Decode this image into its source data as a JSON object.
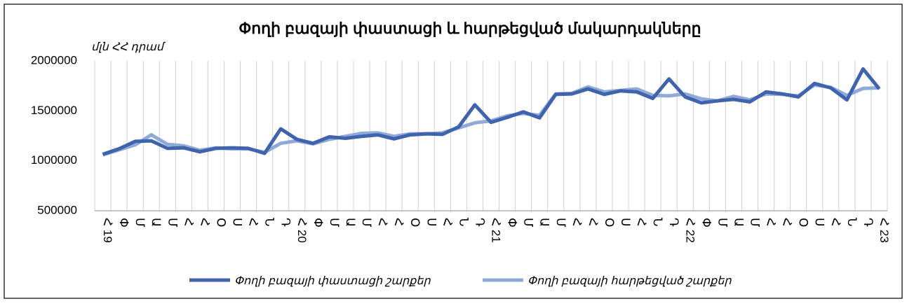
{
  "chart_data": {
    "type": "line",
    "title": "Փողի բազայի փաստացի և հարթեցված մակարդակները",
    "y_label": "մլն ՀՀ դրամ",
    "categories": [
      "Հ 19",
      "Փ",
      "Մ",
      "Ա",
      "Մ",
      "Հ",
      "Հ",
      "Օ",
      "Ս",
      "Հ",
      "Ն",
      "Դ",
      "Հ 20",
      "Փ",
      "Մ",
      "Ա",
      "Մ",
      "Հ",
      "Հ",
      "Օ",
      "Ս",
      "Հ",
      "Ն",
      "Դ",
      "Հ 21",
      "Փ",
      "Մ",
      "Ա",
      "Մ",
      "Հ",
      "Հ",
      "Օ",
      "Ս",
      "Հ",
      "Ն",
      "Դ",
      "Հ 22",
      "Փ",
      "Մ",
      "Ա",
      "Մ",
      "Հ",
      "Հ",
      "Օ",
      "Ս",
      "Հ",
      "Ն",
      "Դ",
      "Հ 23"
    ],
    "series": [
      {
        "name": "Փողի բազայի փաստացի շարքեր",
        "color": "#3f64ad",
        "values": [
          1065000,
          1120000,
          1195000,
          1200000,
          1125000,
          1130000,
          1090000,
          1125000,
          1130000,
          1125000,
          1075000,
          1320000,
          1215000,
          1175000,
          1240000,
          1225000,
          1245000,
          1260000,
          1220000,
          1260000,
          1270000,
          1265000,
          1340000,
          1560000,
          1385000,
          1435000,
          1490000,
          1430000,
          1665000,
          1670000,
          1720000,
          1665000,
          1700000,
          1690000,
          1625000,
          1820000,
          1640000,
          1580000,
          1600000,
          1615000,
          1590000,
          1690000,
          1670000,
          1640000,
          1775000,
          1730000,
          1610000,
          1920000,
          1720000
        ]
      },
      {
        "name": "Փողի բազայի հարթեցված շարքեր",
        "color": "#8fa9d8",
        "values": [
          1060000,
          1110000,
          1160000,
          1260000,
          1165000,
          1150000,
          1105000,
          1130000,
          1120000,
          1120000,
          1085000,
          1175000,
          1200000,
          1170000,
          1215000,
          1245000,
          1275000,
          1280000,
          1245000,
          1270000,
          1270000,
          1280000,
          1330000,
          1380000,
          1400000,
          1450000,
          1475000,
          1455000,
          1670000,
          1675000,
          1740000,
          1690000,
          1705000,
          1720000,
          1655000,
          1650000,
          1670000,
          1620000,
          1600000,
          1645000,
          1610000,
          1670000,
          1665000,
          1650000,
          1760000,
          1735000,
          1655000,
          1725000,
          1730000
        ]
      }
    ],
    "ylim": [
      500000,
      2000000
    ],
    "yticks": [
      500000,
      1000000,
      1500000,
      2000000
    ],
    "grid": "x",
    "legend": "bottom"
  }
}
